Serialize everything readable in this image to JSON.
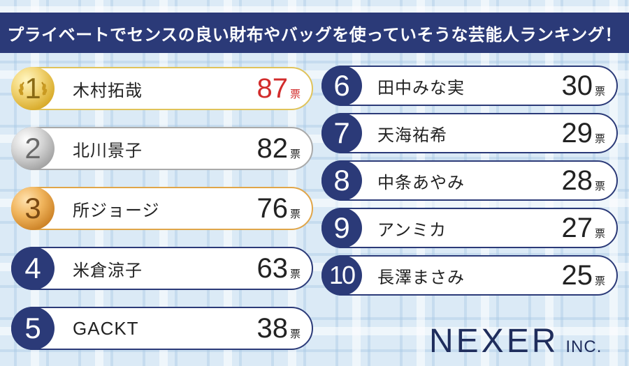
{
  "title": "プライベートでセンスの良い財布やバッグを使っていそうな芸能人ランキング！",
  "unit": "票",
  "ranking": [
    {
      "rank": "1",
      "name": "木村拓哉",
      "votes": "87",
      "medal": "gold"
    },
    {
      "rank": "2",
      "name": "北川景子",
      "votes": "82",
      "medal": "silver"
    },
    {
      "rank": "3",
      "name": "所ジョージ",
      "votes": "76",
      "medal": "bronze"
    },
    {
      "rank": "4",
      "name": "米倉涼子",
      "votes": "63"
    },
    {
      "rank": "5",
      "name": "GACKT",
      "votes": "38"
    },
    {
      "rank": "6",
      "name": "田中みな実",
      "votes": "30"
    },
    {
      "rank": "7",
      "name": "天海祐希",
      "votes": "29"
    },
    {
      "rank": "8",
      "name": "中条あやみ",
      "votes": "28"
    },
    {
      "rank": "9",
      "name": "アンミカ",
      "votes": "27"
    },
    {
      "rank": "10",
      "name": "長澤まさみ",
      "votes": "25"
    }
  ],
  "logo": {
    "main": "NEXER",
    "suffix": "INC."
  },
  "colors": {
    "navy": "#2b3a78",
    "accent_red": "#d22c2c",
    "gold": "#e0c35a",
    "silver": "#a9a9a9",
    "bronze": "#e0a548"
  }
}
